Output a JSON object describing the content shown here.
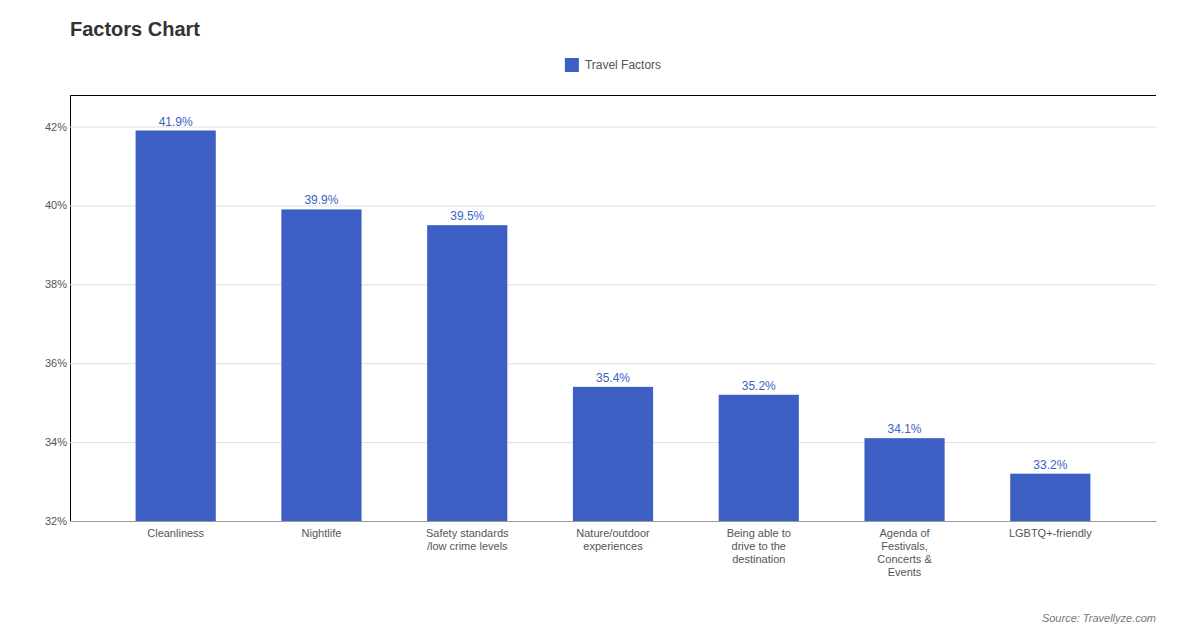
{
  "chart_data": {
    "type": "bar",
    "title": "Factors Chart",
    "source": "Source: Travellyze.com",
    "categories": [
      "Cleanliness",
      "Nightlife",
      "Safety standards\n/low crime levels",
      "Nature/outdoor\nexperiences",
      "Being able to\ndrive to the\ndestination",
      "Agenda of\nFestivals,\nConcerts &\nEvents",
      "LGBTQ+-friendly"
    ],
    "series": [
      {
        "name": "Travel Factors",
        "color": "#3d5fc4",
        "values": [
          41.9,
          39.9,
          39.5,
          35.4,
          35.2,
          34.1,
          33.2
        ],
        "value_labels": [
          "41.9%",
          "39.9%",
          "39.5%",
          "35.4%",
          "35.2%",
          "34.1%",
          "33.2%"
        ]
      }
    ],
    "ylim": [
      32,
      42.8
    ],
    "yticks": [
      {
        "value": 32,
        "label": "32%"
      },
      {
        "value": 34,
        "label": "34%"
      },
      {
        "value": 36,
        "label": "36%"
      },
      {
        "value": 38,
        "label": "38%"
      },
      {
        "value": 40,
        "label": "40%"
      },
      {
        "value": 42,
        "label": "42%"
      }
    ],
    "grid": true,
    "legend": "top",
    "data_labels": true
  }
}
